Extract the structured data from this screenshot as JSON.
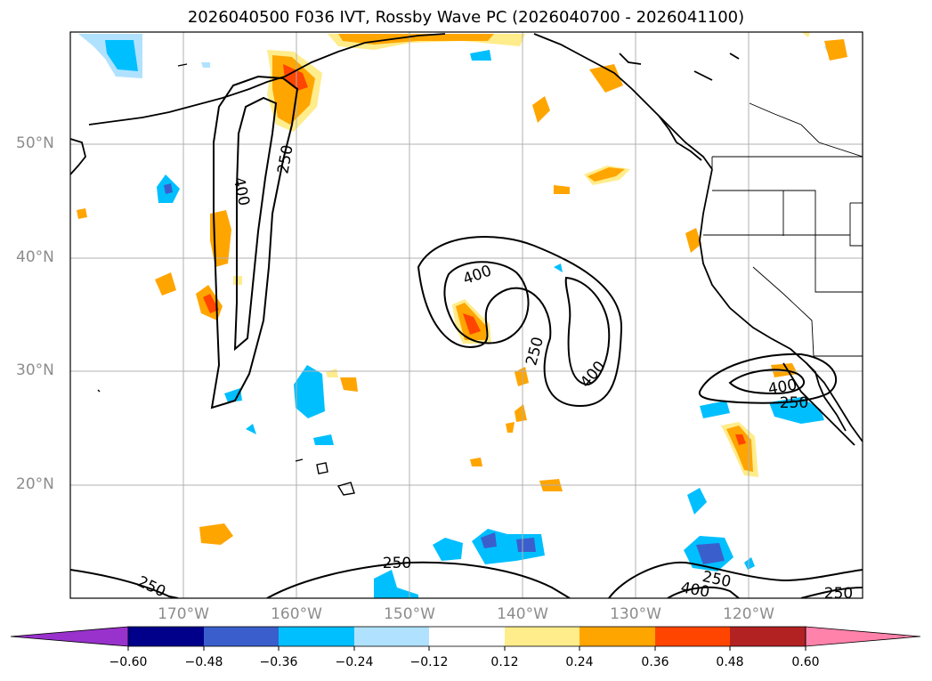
{
  "title": "2026040500 F036 IVT, Rossby Wave PC (2026040700 - 2026041100)",
  "latitude_labels": [
    "50°N",
    "40°N",
    "30°N",
    "20°N"
  ],
  "longitude_labels": [
    "170°W",
    "160°W",
    "150°W",
    "140°W",
    "130°W",
    "120°W"
  ],
  "contour_labels": [
    "400",
    "250",
    "400",
    "250",
    "400",
    "400",
    "250",
    "250",
    "250",
    "250",
    "400",
    "250"
  ],
  "colorbar": {
    "ticks": [
      "−0.60",
      "−0.48",
      "−0.36",
      "−0.24",
      "−0.12",
      "0.12",
      "0.24",
      "0.36",
      "0.48",
      "0.60"
    ],
    "colors": [
      "#9932cc",
      "#00008b",
      "#3a5fcd",
      "#00bfff",
      "#b0e2ff",
      "#ffffff",
      "#ffec8b",
      "#ffa500",
      "#ff4500",
      "#b22222",
      "#ff82ab"
    ]
  },
  "colors": {
    "positive_light": "#ffec8b",
    "positive_mid": "#ffa500",
    "positive_strong": "#ff4500",
    "negative_light": "#b0e2ff",
    "negative_mid": "#00bfff",
    "negative_strong": "#3a5fcd",
    "grid": "#b0b0b0",
    "coast": "#000000"
  }
}
